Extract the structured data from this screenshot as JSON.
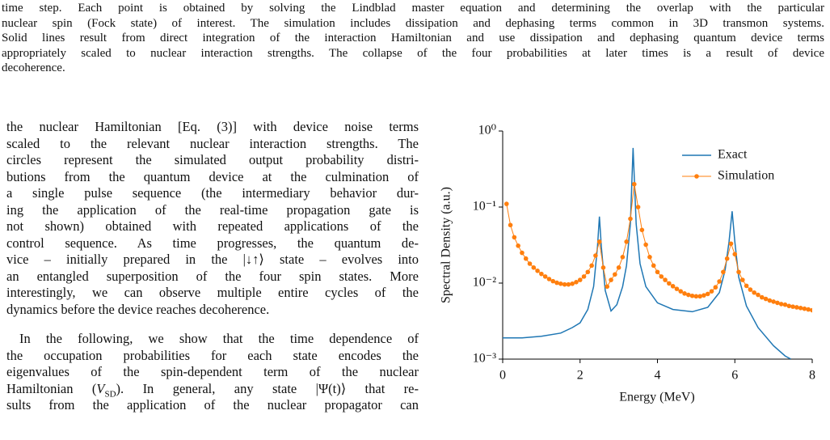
{
  "caption": {
    "lines": [
      "time step. Each point is obtained by solving the Lindblad master equation and determining the overlap with the particular",
      "nuclear spin (Fock state) of interest. The simulation includes dissipation and dephasing terms common in 3D transmon systems.",
      "Solid lines result from direct integration of the interaction Hamiltonian and use dissipation and dephasing quantum device terms",
      "appropriately scaled to nuclear interaction strengths. The collapse of the four probabilities at later times is a result of device",
      "decoherence."
    ]
  },
  "body": {
    "lines": [
      "the nuclear Hamiltonian [Eq. (3)] with device noise terms",
      "scaled to the relevant nuclear interaction strengths. The",
      "circles represent the simulated output probability distri-",
      "butions from the quantum device at the culmination of",
      "a single pulse sequence (the intermediary behavior dur-",
      "ing the application of the real-time propagation gate is",
      "not shown) obtained with repeated applications of the",
      "control sequence. As time progresses, the quantum de-",
      "vice – initially prepared in the |↓↑⟩ state – evolves into",
      "an entangled superposition of the four spin states. More",
      "interestingly, we can observe multiple entire cycles of the",
      "dynamics before the device reaches decoherence.",
      "In the following, we show that the time dependence of",
      "the occupation probabilities for each state encodes the",
      "eigenvalues of the spin-dependent term of the nuclear",
      [
        "Hamiltonian (",
        "V",
        "SD",
        "). In general, any state |Ψ(t)⟩ that re-"
      ],
      "sults from the application of the nuclear propagator can"
    ]
  },
  "chart_data": {
    "type": "line",
    "xlabel": "Energy (MeV)",
    "ylabel": "Spectral Density (a.u.)",
    "xlim": [
      0,
      8
    ],
    "xticks": [
      0,
      2,
      4,
      6,
      8
    ],
    "ylim": [
      0.001,
      1
    ],
    "log_y": true,
    "yticks": [
      {
        "value": 1,
        "label": "10⁰"
      },
      {
        "value": 0.1,
        "label": "10⁻¹"
      },
      {
        "value": 0.01,
        "label": "10⁻²"
      },
      {
        "value": 0.001,
        "label": "10⁻³"
      }
    ],
    "legend": "upper right",
    "series": [
      {
        "name": "Exact",
        "color": "#1f77b4",
        "marker": false,
        "x": [
          0,
          0.5,
          1.0,
          1.5,
          1.8,
          2.0,
          2.2,
          2.35,
          2.45,
          2.5,
          2.55,
          2.65,
          2.8,
          2.95,
          3.1,
          3.2,
          3.3,
          3.37,
          3.45,
          3.55,
          3.7,
          4.0,
          4.4,
          4.9,
          5.3,
          5.6,
          5.75,
          5.85,
          5.93,
          6.0,
          6.1,
          6.3,
          6.6,
          7.0,
          7.3,
          7.45
        ],
        "values": [
          0.0019,
          0.0019,
          0.002,
          0.0022,
          0.0026,
          0.003,
          0.0045,
          0.009,
          0.03,
          0.075,
          0.03,
          0.008,
          0.0043,
          0.0052,
          0.009,
          0.017,
          0.06,
          0.6,
          0.06,
          0.018,
          0.009,
          0.0055,
          0.0045,
          0.0042,
          0.0048,
          0.0075,
          0.015,
          0.035,
          0.088,
          0.035,
          0.012,
          0.005,
          0.0026,
          0.0015,
          0.0011,
          0.001
        ]
      },
      {
        "name": "Simulation",
        "color": "#ff7f0e",
        "marker": true,
        "x": [
          0.1,
          0.2,
          0.3,
          0.4,
          0.5,
          0.6,
          0.7,
          0.8,
          0.9,
          1.0,
          1.1,
          1.2,
          1.3,
          1.4,
          1.5,
          1.6,
          1.7,
          1.8,
          1.9,
          2.0,
          2.1,
          2.2,
          2.3,
          2.4,
          2.5,
          2.6,
          2.7,
          2.8,
          2.9,
          3.0,
          3.1,
          3.2,
          3.3,
          3.4,
          3.5,
          3.6,
          3.7,
          3.8,
          3.9,
          4.0,
          4.1,
          4.2,
          4.3,
          4.4,
          4.5,
          4.6,
          4.7,
          4.8,
          4.9,
          5.0,
          5.1,
          5.2,
          5.3,
          5.4,
          5.5,
          5.6,
          5.7,
          5.8,
          5.9,
          6.0,
          6.1,
          6.2,
          6.3,
          6.4,
          6.5,
          6.6,
          6.7,
          6.8,
          6.9,
          7.0,
          7.1,
          7.2,
          7.3,
          7.4,
          7.5,
          7.6,
          7.7,
          7.8,
          7.9,
          8.0
        ],
        "values": [
          0.11,
          0.058,
          0.04,
          0.031,
          0.025,
          0.021,
          0.018,
          0.016,
          0.0145,
          0.0132,
          0.0122,
          0.0113,
          0.0106,
          0.0101,
          0.0098,
          0.0096,
          0.0096,
          0.0098,
          0.0103,
          0.011,
          0.0122,
          0.014,
          0.017,
          0.023,
          0.035,
          0.016,
          0.009,
          0.011,
          0.013,
          0.016,
          0.022,
          0.035,
          0.07,
          0.2,
          0.1,
          0.05,
          0.032,
          0.022,
          0.017,
          0.014,
          0.0122,
          0.011,
          0.0099,
          0.0091,
          0.0084,
          0.0078,
          0.0073,
          0.007,
          0.0068,
          0.0067,
          0.0067,
          0.0069,
          0.0072,
          0.0078,
          0.0088,
          0.0105,
          0.014,
          0.021,
          0.033,
          0.024,
          0.014,
          0.011,
          0.0092,
          0.0082,
          0.0075,
          0.007,
          0.0065,
          0.0062,
          0.0059,
          0.0057,
          0.0055,
          0.0053,
          0.0052,
          0.005,
          0.0049,
          0.0048,
          0.0047,
          0.0046,
          0.0045,
          0.0044
        ]
      }
    ]
  }
}
